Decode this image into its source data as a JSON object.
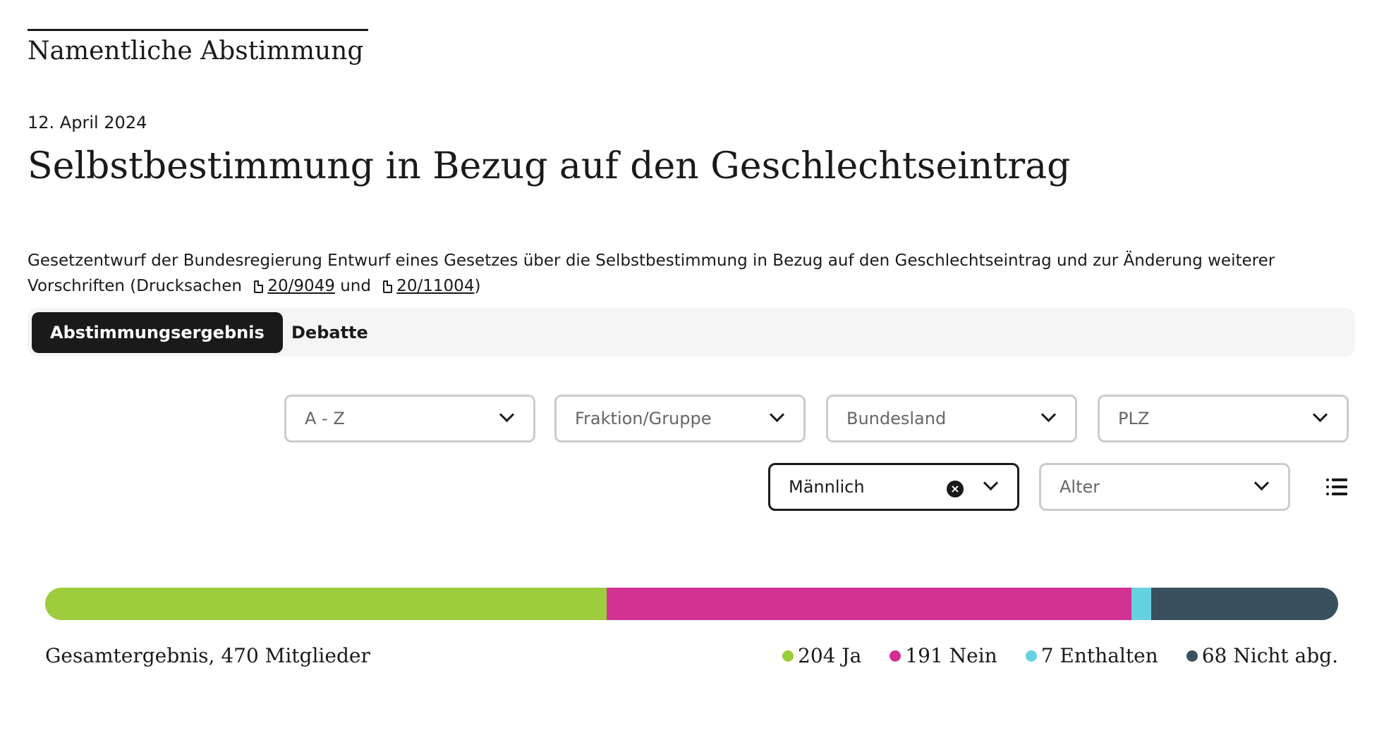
{
  "header": {
    "kicker": "Namentliche Abstimmung",
    "date": "12. April 2024",
    "title": "Selbstbestimmung in Bezug auf den Geschlechtseintrag"
  },
  "description": {
    "text": "Gesetzentwurf der Bundesregierung Entwurf eines Gesetzes über die Selbstbestimmung in Bezug auf den Geschlechtseintrag und zur Änderung weiterer Vorschriften (Drucksachen",
    "link1": "20/9049",
    "conjunction": "und",
    "link2": "20/11004",
    "closing": ")"
  },
  "tabs": [
    {
      "label": "Abstimmungsergebnis",
      "active": true
    },
    {
      "label": "Debatte",
      "active": false
    }
  ],
  "filters": {
    "sort": {
      "placeholder": "A - Z"
    },
    "faction": {
      "placeholder": "Fraktion/Gruppe"
    },
    "state": {
      "placeholder": "Bundesland"
    },
    "zip": {
      "placeholder": "PLZ"
    },
    "gender": {
      "value": "Männlich"
    },
    "age": {
      "placeholder": "Alter"
    }
  },
  "icons": {
    "clear": "x-circle-icon",
    "list": "list-view-icon",
    "chevron": "chevron-down-icon",
    "document": "document-icon"
  },
  "chart_data": {
    "type": "bar",
    "orientation": "horizontal-stacked",
    "title": "Gesamtergebnis, 470 Mitglieder",
    "series": [
      {
        "name": "Ja",
        "value": 204,
        "label": "204 Ja",
        "color": "#9dcc3d"
      },
      {
        "name": "Nein",
        "value": 191,
        "label": "191 Nein",
        "color": "#d13292"
      },
      {
        "name": "Enthalten",
        "value": 7,
        "label": "7 Enthalten",
        "color": "#66d1e0"
      },
      {
        "name": "Nicht abg.",
        "value": 68,
        "label": "68 Nicht abg.",
        "color": "#3a505f"
      }
    ],
    "legend": "bottom-right"
  }
}
